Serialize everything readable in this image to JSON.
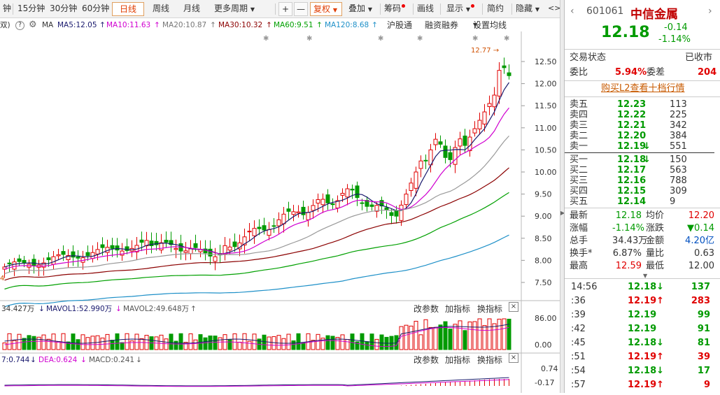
{
  "toolbar": {
    "items": [
      "钟",
      "15分钟",
      "30分钟",
      "60分钟",
      "日线",
      "周线",
      "月线",
      "更多周期",
      "+",
      "—",
      "复权",
      "叠加",
      "筹码",
      "画线",
      "显示",
      "简约",
      "隐藏"
    ],
    "active": "日线"
  },
  "mabar": {
    "prefix": "双)",
    "help": "?",
    "gear": "⚙",
    "ma": "MA",
    "ma5": "MA5:12.05",
    "ma10": "MA10:11.63",
    "ma20": "MA20:10.87",
    "ma30": "MA30:10.32",
    "ma60": "MA60:9.51",
    "ma120": "MA120:8.68",
    "link1": "沪股通",
    "link2": "融资融券",
    "link3": "设置均线"
  },
  "price_axis": [
    "12.50",
    "12.00",
    "11.50",
    "11.00",
    "10.50",
    "10.00",
    "9.50",
    "9.00",
    "8.50",
    "8.00",
    "7.50"
  ],
  "peak_label": "12.77",
  "left_low_label": "4",
  "vol_panel": {
    "v0": "34.427万",
    "v1": "MAVOL1:52.990万",
    "v2": "MAVOL2:49.648万",
    "btn1": "改参数",
    "btn2": "加指标",
    "btn3": "换指标",
    "close": "×",
    "axis_top": "86.00",
    "axis_bottom": "0.00"
  },
  "macd_panel": {
    "dif": "7:0.744",
    "dea": "DEA:0.624",
    "macd": "MACD:0.241",
    "btn1": "改参数",
    "btn2": "加指标",
    "btn3": "换指标",
    "close": "×",
    "axis_top": "0.74",
    "axis_bottom": "-0.17"
  },
  "quote": {
    "code": "601061",
    "name": "中信金属",
    "price": "12.18",
    "change": "-0.14",
    "pct": "-1.14%",
    "status_label": "交易状态",
    "status": "已收市",
    "wb_label": "委比",
    "wb": "5.94%",
    "wc_label": "委差",
    "wc": "204",
    "l2": "购买L2查看十档行情",
    "sells": [
      {
        "label": "卖五",
        "price": "12.23",
        "vol": "113",
        "flag": ""
      },
      {
        "label": "卖四",
        "price": "12.22",
        "vol": "225",
        "flag": ""
      },
      {
        "label": "卖三",
        "price": "12.21",
        "vol": "342",
        "flag": ""
      },
      {
        "label": "卖二",
        "price": "12.20",
        "vol": "384",
        "flag": ""
      },
      {
        "label": "卖一",
        "price": "12.19",
        "vol": "551",
        "flag": "↓"
      }
    ],
    "buys": [
      {
        "label": "买一",
        "price": "12.18",
        "vol": "150",
        "flag": "↓"
      },
      {
        "label": "买二",
        "price": "12.17",
        "vol": "563",
        "flag": ""
      },
      {
        "label": "买三",
        "price": "12.16",
        "vol": "788",
        "flag": ""
      },
      {
        "label": "买四",
        "price": "12.15",
        "vol": "309",
        "flag": ""
      },
      {
        "label": "买五",
        "price": "12.14",
        "vol": "9",
        "flag": ""
      }
    ],
    "stats": [
      {
        "l1": "最新",
        "v1": "12.18",
        "l2": "均价",
        "v2": "12.20"
      },
      {
        "l1": "涨幅",
        "v1": "-1.14%",
        "l2": "涨跌",
        "v2": "▼0.14"
      },
      {
        "l1": "总手",
        "v1": "34.43万",
        "l2": "金额",
        "v2": "4.20亿"
      },
      {
        "l1": "换手*",
        "v1": "6.87%",
        "l2": "量比",
        "v2": "0.63"
      },
      {
        "l1": "最高",
        "v1": "12.59",
        "l2": "最低",
        "v2": "12.00"
      }
    ],
    "ticks": [
      {
        "time": "14:56",
        "price": "12.18",
        "dir": "down",
        "vol": "137"
      },
      {
        "time": ":36",
        "price": "12.19",
        "dir": "up",
        "vol": "283"
      },
      {
        "time": ":39",
        "price": "12.19",
        "dir": "",
        "vol": "99"
      },
      {
        "time": ":42",
        "price": "12.19",
        "dir": "",
        "vol": "91"
      },
      {
        "time": ":45",
        "price": "12.18",
        "dir": "down",
        "vol": "81"
      },
      {
        "time": ":51",
        "price": "12.19",
        "dir": "up",
        "vol": "39"
      },
      {
        "time": ":54",
        "price": "12.18",
        "dir": "down",
        "vol": "17"
      },
      {
        "time": ":57",
        "price": "12.19",
        "dir": "up",
        "vol": "9"
      }
    ]
  },
  "colors": {
    "up": "#e00000",
    "down": "#009a00",
    "ma5": "#1a1a6e",
    "ma10": "#d000d0",
    "ma20": "#999999",
    "ma30": "#8b0000",
    "ma60": "#00a000",
    "ma120": "#1e90c8"
  }
}
